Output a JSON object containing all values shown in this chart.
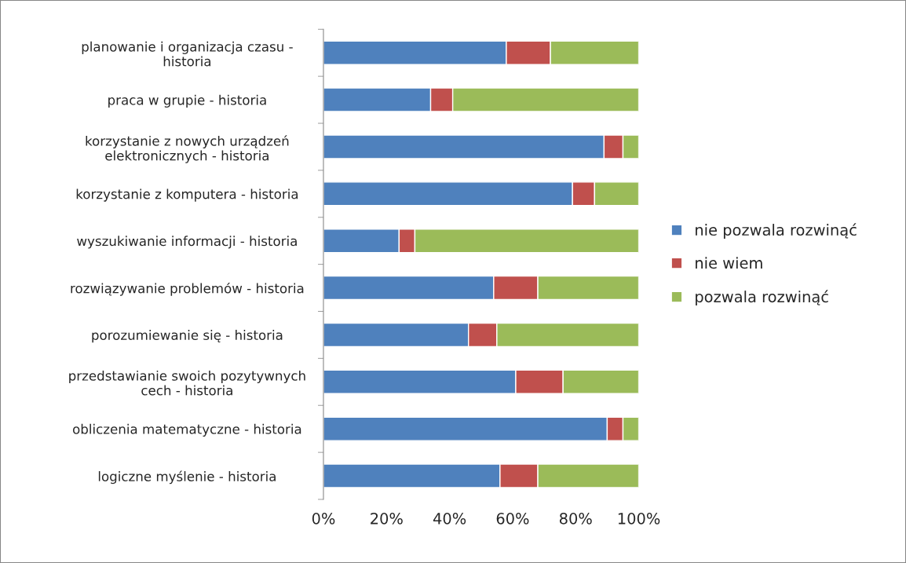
{
  "chart_data": {
    "type": "bar",
    "orientation": "horizontal",
    "stacked": true,
    "categories": [
      "planowanie i organizacja czasu -\nhistoria",
      "praca w grupie - historia",
      "korzystanie z nowych urządzeń\nelektronicznych - historia",
      "korzystanie z komputera - historia",
      "wyszukiwanie informacji - historia",
      "rozwiązywanie problemów - historia",
      "porozumiewanie się - historia",
      "przedstawianie swoich pozytywnych\ncech - historia",
      "obliczenia matematyczne - historia",
      "logiczne myślenie - historia"
    ],
    "series": [
      {
        "name": "nie pozwala rozwinąć",
        "color": "#4f81bd",
        "values": [
          58,
          34,
          89,
          79,
          24,
          54,
          46,
          61,
          90,
          56
        ]
      },
      {
        "name": "nie wiem",
        "color": "#c0504d",
        "values": [
          14,
          7,
          6,
          7,
          5,
          14,
          9,
          15,
          5,
          12
        ]
      },
      {
        "name": "pozwala rozwinąć",
        "color": "#9bbb59",
        "values": [
          28,
          59,
          5,
          14,
          71,
          32,
          45,
          24,
          5,
          32
        ]
      }
    ],
    "xlim": [
      0,
      100
    ],
    "xticks": [
      {
        "value": 0,
        "label": "0%"
      },
      {
        "value": 20,
        "label": "20%"
      },
      {
        "value": 40,
        "label": "40%"
      },
      {
        "value": 60,
        "label": "60%"
      },
      {
        "value": 80,
        "label": "80%"
      },
      {
        "value": 100,
        "label": "100%"
      }
    ],
    "grid": false,
    "legend": "right"
  }
}
